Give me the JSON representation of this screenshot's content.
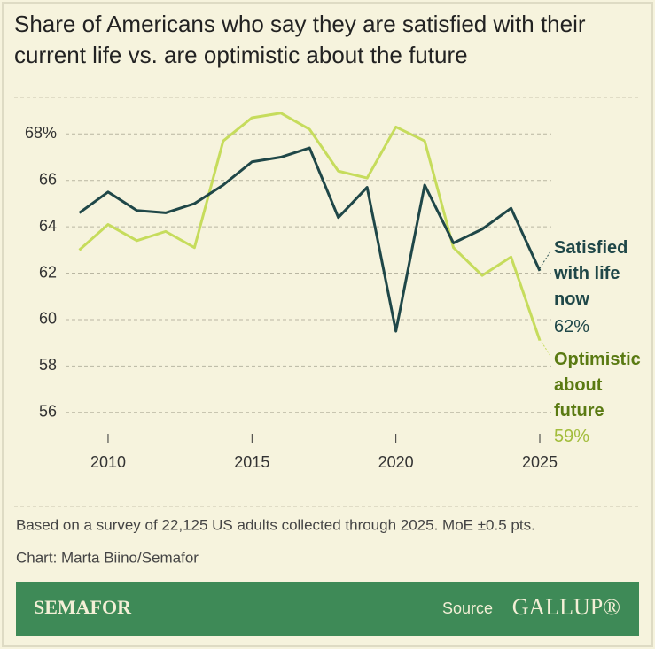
{
  "chart_data": {
    "type": "line",
    "title": "Share of Americans who say they are satisfied with their current life vs. are optimistic about the future",
    "x": [
      2009,
      2010,
      2011,
      2012,
      2013,
      2014,
      2015,
      2016,
      2017,
      2018,
      2019,
      2020,
      2021,
      2022,
      2023,
      2024,
      2025
    ],
    "series": [
      {
        "name": "Satisfied with life now",
        "color": "#1f4748",
        "values": [
          64.6,
          65.5,
          64.7,
          64.6,
          65.0,
          65.8,
          66.8,
          67.0,
          67.4,
          64.4,
          65.7,
          59.5,
          65.8,
          63.3,
          63.9,
          64.8,
          62.1
        ],
        "value_labels": [
          null,
          null,
          null,
          null,
          null,
          null,
          null,
          null,
          null,
          null,
          null,
          null,
          null,
          null,
          null,
          null,
          "62%"
        ]
      },
      {
        "name": "Optimistic about future",
        "color": "#c6dc5c",
        "values": [
          63.0,
          64.1,
          63.4,
          63.8,
          63.1,
          67.7,
          68.7,
          68.9,
          68.2,
          66.4,
          66.1,
          68.3,
          67.7,
          63.1,
          61.9,
          62.7,
          59.1
        ],
        "value_labels": [
          null,
          null,
          null,
          null,
          null,
          null,
          null,
          null,
          null,
          null,
          null,
          null,
          null,
          null,
          null,
          null,
          "59%"
        ]
      }
    ],
    "xlim": [
      2009,
      2025
    ],
    "xticks": [
      2010,
      2015,
      2020,
      2025
    ],
    "ylim": [
      55,
      69.5
    ],
    "yticks": [
      56,
      58,
      60,
      62,
      64,
      66,
      {
        "value": 68,
        "label": "68%"
      }
    ],
    "grid": true,
    "note": "Based on a survey of 22,125 US adults collected through 2025. MoE ±0.5 pts.",
    "credit": "Chart: Marta Biino/Semafor",
    "brand": "SEMAFOR",
    "source_label": "Source",
    "source": "GALLUP®"
  }
}
